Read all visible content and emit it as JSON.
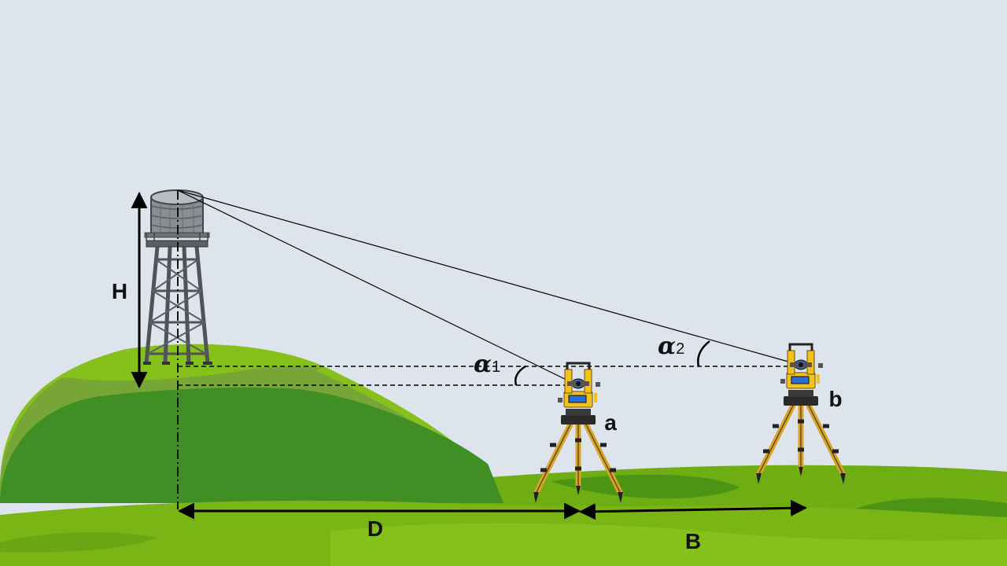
{
  "labels": {
    "height": "H",
    "distance": "D",
    "base": "B",
    "station_a": "a",
    "station_b": "b",
    "alpha1": "α",
    "alpha1_sub": "1",
    "alpha2": "α",
    "alpha2_sub": "2"
  },
  "colors": {
    "sky": "#dde4eb",
    "hill_light": "#86c01b",
    "hill_mid": "#77a637",
    "hill_dark": "#3f8f24",
    "ground": "#7ab516",
    "instrument_yellow": "#f2c21b",
    "tripod_leg": "#d9a42a"
  },
  "icons": [
    "water-tower-icon",
    "theodolite-icon"
  ]
}
